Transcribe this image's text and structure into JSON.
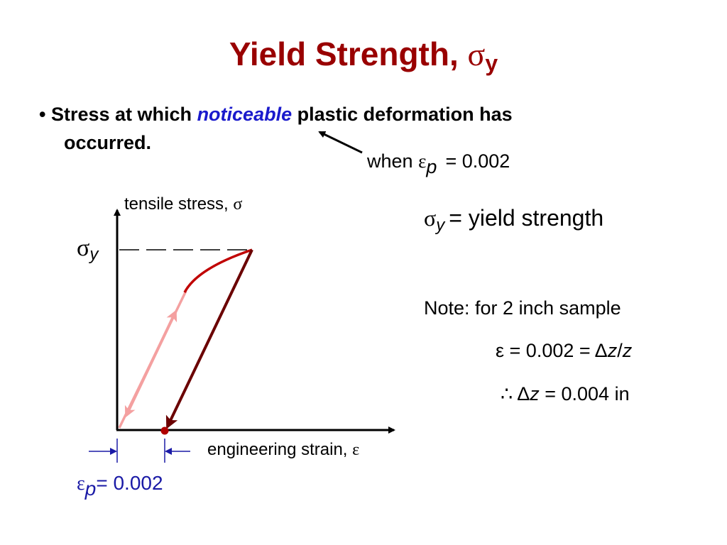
{
  "title": {
    "text": "Yield Strength,",
    "symbol": "σ",
    "subscript": "y"
  },
  "bullet": {
    "marker": "•",
    "before": "Stress at which",
    "emphasis": "noticeable",
    "after": "plastic deformation has",
    "continuation": "occurred."
  },
  "callout": {
    "text": "when",
    "symbol": "ε",
    "subscript": "p",
    "value": "= 0.002"
  },
  "diagram": {
    "y_axis_label": "tensile stress,",
    "y_axis_symbol": "σ",
    "x_axis_label": "engineering strain,",
    "x_axis_symbol": "ε",
    "yield_symbol": "σ",
    "yield_subscript": "y",
    "offset": {
      "symbol": "ε",
      "subscript": "p",
      "value": "= 0.002"
    }
  },
  "definition": {
    "symbol": "σ",
    "subscript": "y",
    "text": "= yield strength"
  },
  "note": {
    "heading": "Note: for 2 inch sample",
    "line1": [
      "ε = 0.002 = Δ",
      "z",
      "/",
      "z"
    ],
    "line2": [
      "∴ Δ",
      "z",
      " = 0.004 in"
    ]
  }
}
